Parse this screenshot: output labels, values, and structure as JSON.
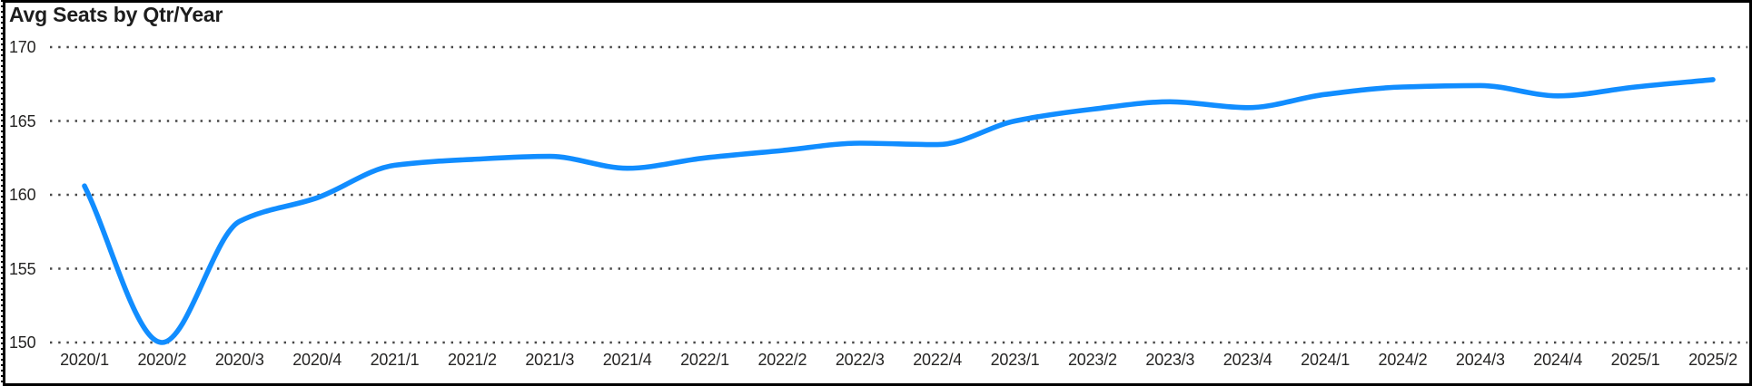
{
  "chart_data": {
    "type": "line",
    "title": "Avg Seats by Qtr/Year",
    "categories": [
      "2020/1",
      "2020/2",
      "2020/3",
      "2020/4",
      "2021/1",
      "2021/2",
      "2021/3",
      "2021/4",
      "2022/1",
      "2022/2",
      "2022/3",
      "2022/4",
      "2023/1",
      "2023/2",
      "2023/3",
      "2023/4",
      "2024/1",
      "2024/2",
      "2024/3",
      "2024/4",
      "2025/1",
      "2025/2"
    ],
    "series": [
      {
        "name": "Avg Seats",
        "values": [
          160.6,
          150.0,
          158.2,
          159.8,
          162.0,
          162.4,
          162.6,
          161.8,
          162.5,
          163.0,
          163.5,
          163.4,
          165.0,
          165.8,
          166.3,
          165.9,
          166.8,
          167.3,
          167.4,
          166.7,
          167.3,
          167.8
        ]
      }
    ],
    "xlabel": "",
    "ylabel": "",
    "ylim": [
      150,
      170
    ],
    "y_ticks": [
      170,
      165,
      160,
      155,
      150
    ],
    "grid": "dotted-horizontal",
    "legend": "none",
    "line_smoothing": "monotone",
    "colors": {
      "line": "#118DFF",
      "gridline": "#474747",
      "tick_text": "#252423",
      "title_text": "#1d1d1d",
      "border": "#000000",
      "background": "#ffffff"
    }
  }
}
